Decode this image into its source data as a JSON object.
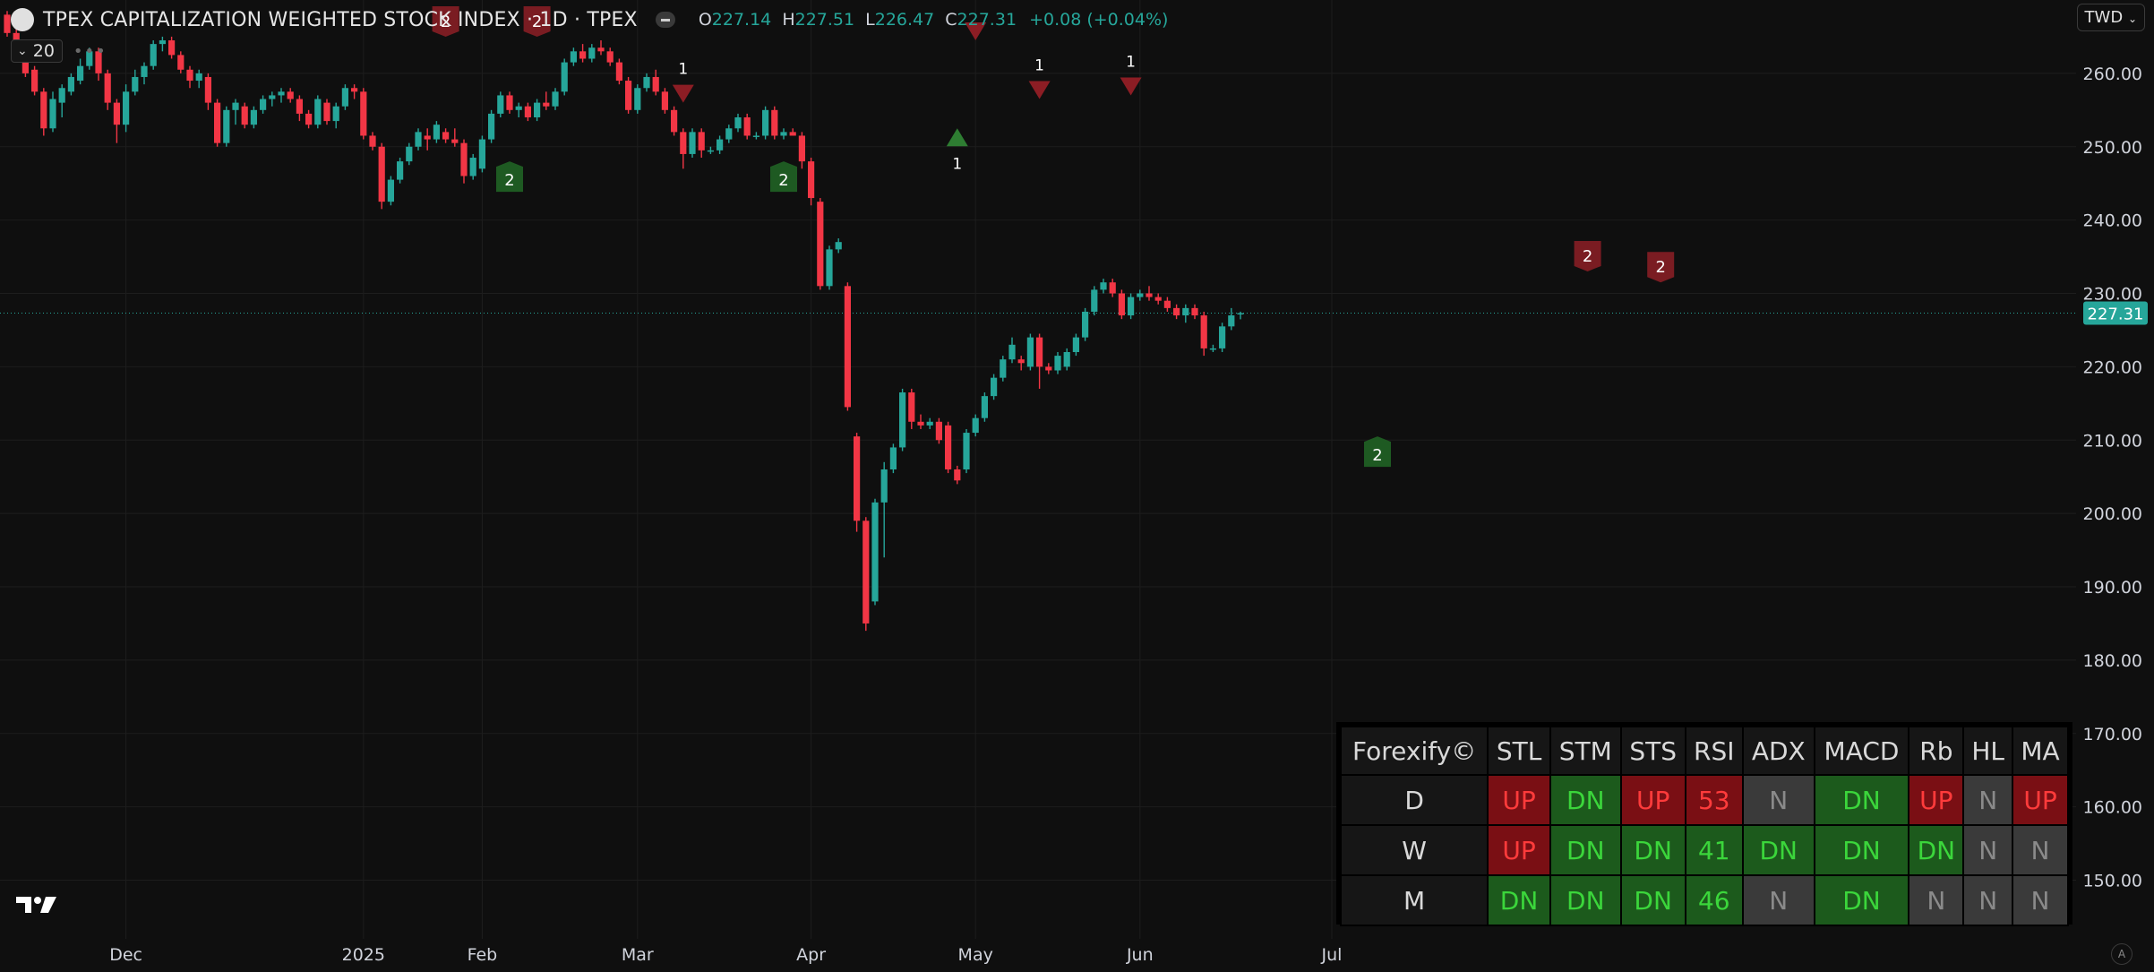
{
  "header": {
    "title": "TPEX CAPITALIZATION WEIGHTED STOCK INDEX · 1D · TPEX",
    "ohlc": {
      "o_label": "O",
      "open": "227.14",
      "h_label": "H",
      "high": "227.51",
      "l_label": "L",
      "low": "226.47",
      "c_label": "C",
      "close": "227.31",
      "change": "+0.08 (+0.04%)"
    }
  },
  "indicator": {
    "value": "20"
  },
  "currency": "TWD",
  "colors": {
    "up": "#26a69a",
    "down": "#f23645",
    "bg": "#0f0f0f",
    "marker_red": "#7a1c22",
    "marker_green": "#1e5a22"
  },
  "chart_data": {
    "type": "candlestick",
    "ylim": [
      142,
      270
    ],
    "y_ticks": [
      150,
      160,
      170,
      180,
      190,
      200,
      210,
      220,
      230,
      240,
      250,
      260
    ],
    "y_tick_labels": [
      "150.00",
      "160.00",
      "170.00",
      "180.00",
      "190.00",
      "200.00",
      "210.00",
      "220.00",
      "230.00",
      "240.00",
      "250.00",
      "260.00"
    ],
    "x_labels": [
      {
        "label": "Dec",
        "index": 13
      },
      {
        "label": "2025",
        "index": 39
      },
      {
        "label": "Feb",
        "index": 52
      },
      {
        "label": "Mar",
        "index": 69
      },
      {
        "label": "Apr",
        "index": 88
      },
      {
        "label": "May",
        "index": 106
      },
      {
        "label": "Jun",
        "index": 124
      },
      {
        "label": "Jul",
        "index": 145
      }
    ],
    "last_price": 227.31,
    "last_price_label": "227.31",
    "candles": [
      [
        268.0,
        268.5,
        265.0,
        265.5
      ],
      [
        265.5,
        266.0,
        262.0,
        262.5
      ],
      [
        262.0,
        262.5,
        259.5,
        260.0
      ],
      [
        260.5,
        261.0,
        257.0,
        257.5
      ],
      [
        257.5,
        258.0,
        251.5,
        252.5
      ],
      [
        252.5,
        257.5,
        252.0,
        256.5
      ],
      [
        256.0,
        258.5,
        254.0,
        258.0
      ],
      [
        257.5,
        260.0,
        257.0,
        259.5
      ],
      [
        259.0,
        262.0,
        258.5,
        261.0
      ],
      [
        261.0,
        263.5,
        260.5,
        263.0
      ],
      [
        263.0,
        263.5,
        259.0,
        260.0
      ],
      [
        260.0,
        260.5,
        255.0,
        256.0
      ],
      [
        256.0,
        256.5,
        250.5,
        253.0
      ],
      [
        253.0,
        258.5,
        252.0,
        257.5
      ],
      [
        257.5,
        260.5,
        257.0,
        259.5
      ],
      [
        259.5,
        261.5,
        258.5,
        261.0
      ],
      [
        261.0,
        264.5,
        260.5,
        264.0
      ],
      [
        264.0,
        265.0,
        263.0,
        264.5
      ],
      [
        264.5,
        265.0,
        262.0,
        262.5
      ],
      [
        262.5,
        263.0,
        260.0,
        260.5
      ],
      [
        260.5,
        261.0,
        258.0,
        259.0
      ],
      [
        259.0,
        260.5,
        258.0,
        260.0
      ],
      [
        259.5,
        260.0,
        255.0,
        256.0
      ],
      [
        256.0,
        256.5,
        250.0,
        250.5
      ],
      [
        250.5,
        255.5,
        250.0,
        255.0
      ],
      [
        255.0,
        256.5,
        253.0,
        256.0
      ],
      [
        255.5,
        256.0,
        252.5,
        253.0
      ],
      [
        253.0,
        255.5,
        252.5,
        255.0
      ],
      [
        255.0,
        257.0,
        254.5,
        256.5
      ],
      [
        256.5,
        257.5,
        255.5,
        257.0
      ],
      [
        257.0,
        258.0,
        256.0,
        257.5
      ],
      [
        257.5,
        258.0,
        256.0,
        256.5
      ],
      [
        256.5,
        257.0,
        253.5,
        254.5
      ],
      [
        254.5,
        255.0,
        252.5,
        253.0
      ],
      [
        253.0,
        257.0,
        252.5,
        256.5
      ],
      [
        256.0,
        256.5,
        253.0,
        253.5
      ],
      [
        253.5,
        256.0,
        252.5,
        255.5
      ],
      [
        255.5,
        258.5,
        255.0,
        258.0
      ],
      [
        258.0,
        258.5,
        256.5,
        257.5
      ],
      [
        257.5,
        258.0,
        251.0,
        251.5
      ],
      [
        251.5,
        252.0,
        249.5,
        250.0
      ],
      [
        250.0,
        250.5,
        241.5,
        242.5
      ],
      [
        242.5,
        246.0,
        242.0,
        245.5
      ],
      [
        245.5,
        248.5,
        245.0,
        248.0
      ],
      [
        248.0,
        250.5,
        247.5,
        250.0
      ],
      [
        250.0,
        252.5,
        249.5,
        252.0
      ],
      [
        251.5,
        252.5,
        249.5,
        251.0
      ],
      [
        251.0,
        253.5,
        250.5,
        253.0
      ],
      [
        252.0,
        252.5,
        250.5,
        251.0
      ],
      [
        251.0,
        252.5,
        250.0,
        250.5
      ],
      [
        250.5,
        251.0,
        245.0,
        246.0
      ],
      [
        246.0,
        249.0,
        245.5,
        248.5
      ],
      [
        247.0,
        251.5,
        246.5,
        251.0
      ],
      [
        251.0,
        255.0,
        250.5,
        254.5
      ],
      [
        254.5,
        257.5,
        254.0,
        257.0
      ],
      [
        257.0,
        257.5,
        254.5,
        255.0
      ],
      [
        255.0,
        256.0,
        254.0,
        255.5
      ],
      [
        255.5,
        256.0,
        253.5,
        254.0
      ],
      [
        254.0,
        256.5,
        253.5,
        256.0
      ],
      [
        256.0,
        257.5,
        255.0,
        255.5
      ],
      [
        255.5,
        258.0,
        255.0,
        257.5
      ],
      [
        257.5,
        262.0,
        257.0,
        261.5
      ],
      [
        261.5,
        263.5,
        261.0,
        263.0
      ],
      [
        263.0,
        264.0,
        261.5,
        262.0
      ],
      [
        262.0,
        264.0,
        261.5,
        263.5
      ],
      [
        263.5,
        264.5,
        262.5,
        263.0
      ],
      [
        263.0,
        263.5,
        261.0,
        261.5
      ],
      [
        261.5,
        262.0,
        258.5,
        259.0
      ],
      [
        259.0,
        259.5,
        254.5,
        255.0
      ],
      [
        255.0,
        258.5,
        254.5,
        258.0
      ],
      [
        258.0,
        260.0,
        257.5,
        259.5
      ],
      [
        259.5,
        260.5,
        257.0,
        257.5
      ],
      [
        257.5,
        258.0,
        254.5,
        255.0
      ],
      [
        255.0,
        255.5,
        251.5,
        252.0
      ],
      [
        252.0,
        252.5,
        247.0,
        249.0
      ],
      [
        249.0,
        252.5,
        248.5,
        252.0
      ],
      [
        252.0,
        252.5,
        248.5,
        249.5
      ],
      [
        249.5,
        250.0,
        249.0,
        249.5
      ],
      [
        249.5,
        251.5,
        249.0,
        251.0
      ],
      [
        251.0,
        253.0,
        250.5,
        252.5
      ],
      [
        252.5,
        254.5,
        252.0,
        254.0
      ],
      [
        254.0,
        254.5,
        251.0,
        251.5
      ],
      [
        251.5,
        252.0,
        251.0,
        251.5
      ],
      [
        251.5,
        255.5,
        251.0,
        255.0
      ],
      [
        255.0,
        255.5,
        251.0,
        251.5
      ],
      [
        251.5,
        252.5,
        251.0,
        252.0
      ],
      [
        252.0,
        252.5,
        251.5,
        251.5
      ],
      [
        251.5,
        252.0,
        247.0,
        248.0
      ],
      [
        248.0,
        248.5,
        242.0,
        243.0
      ],
      [
        242.5,
        243.0,
        230.5,
        231.0
      ],
      [
        231.0,
        236.5,
        230.5,
        236.0
      ],
      [
        236.0,
        237.5,
        235.5,
        237.0
      ],
      [
        231.0,
        231.5,
        214.0,
        214.5
      ],
      [
        210.5,
        211.0,
        197.5,
        199.0
      ],
      [
        199.0,
        199.5,
        184.0,
        185.0
      ],
      [
        188.0,
        202.0,
        187.5,
        201.5
      ],
      [
        201.5,
        207.0,
        194.0,
        206.0
      ],
      [
        206.0,
        209.5,
        205.5,
        209.0
      ],
      [
        209.0,
        217.0,
        208.5,
        216.5
      ],
      [
        216.5,
        217.0,
        211.5,
        212.5
      ],
      [
        212.5,
        213.5,
        211.5,
        212.0
      ],
      [
        212.0,
        213.0,
        211.5,
        212.5
      ],
      [
        212.5,
        213.0,
        209.5,
        210.0
      ],
      [
        212.0,
        212.5,
        205.5,
        206.0
      ],
      [
        206.0,
        206.5,
        204.0,
        204.5
      ],
      [
        206.0,
        211.5,
        205.5,
        211.0
      ],
      [
        211.0,
        213.5,
        210.5,
        213.0
      ],
      [
        213.0,
        216.5,
        212.5,
        216.0
      ],
      [
        216.0,
        219.0,
        215.5,
        218.5
      ],
      [
        218.5,
        221.5,
        218.0,
        221.0
      ],
      [
        221.0,
        224.0,
        220.5,
        223.0
      ],
      [
        221.0,
        221.5,
        219.5,
        220.5
      ],
      [
        220.0,
        224.5,
        219.5,
        224.0
      ],
      [
        224.0,
        224.5,
        217.0,
        220.0
      ],
      [
        220.0,
        220.5,
        219.0,
        219.5
      ],
      [
        219.5,
        222.0,
        219.0,
        221.5
      ],
      [
        220.0,
        222.5,
        219.5,
        222.0
      ],
      [
        222.0,
        224.5,
        221.5,
        224.0
      ],
      [
        224.0,
        228.0,
        223.5,
        227.5
      ],
      [
        227.5,
        231.0,
        227.0,
        230.5
      ],
      [
        230.5,
        232.0,
        230.0,
        231.5
      ],
      [
        231.5,
        232.0,
        229.5,
        230.0
      ],
      [
        230.0,
        230.5,
        226.5,
        227.0
      ],
      [
        227.0,
        230.0,
        226.5,
        229.5
      ],
      [
        229.5,
        230.5,
        229.0,
        230.0
      ],
      [
        230.0,
        231.0,
        229.0,
        229.5
      ],
      [
        229.5,
        230.0,
        228.5,
        229.0
      ],
      [
        229.0,
        229.5,
        227.5,
        228.0
      ],
      [
        228.0,
        228.5,
        226.5,
        227.0
      ],
      [
        227.0,
        228.5,
        226.0,
        228.0
      ],
      [
        228.0,
        228.5,
        226.5,
        227.0
      ],
      [
        227.0,
        227.5,
        221.5,
        222.5
      ],
      [
        222.5,
        223.0,
        222.0,
        222.5
      ],
      [
        222.5,
        226.0,
        222.0,
        225.5
      ],
      [
        225.5,
        228.0,
        225.0,
        227.0
      ],
      [
        227.14,
        227.51,
        226.47,
        227.31
      ]
    ],
    "markers": [
      {
        "type": "flag",
        "color": "red",
        "label": "2",
        "index": 48,
        "price": 265.0,
        "pos": "above"
      },
      {
        "type": "flag",
        "color": "red",
        "label": "2",
        "index": 58,
        "price": 265.0,
        "pos": "above"
      },
      {
        "type": "flag",
        "color": "green",
        "label": "2",
        "index": 55,
        "price": 248.0,
        "pos": "below"
      },
      {
        "type": "flag",
        "color": "green",
        "label": "2",
        "index": 85,
        "price": 248.0,
        "pos": "below"
      },
      {
        "type": "tri",
        "color": "red",
        "label": "1",
        "index": 74,
        "price": 256.0,
        "pos": "above"
      },
      {
        "type": "tri",
        "color": "green",
        "label": "1",
        "index": 104,
        "price": 252.5,
        "pos": "below"
      },
      {
        "type": "tri",
        "color": "red",
        "label": "1",
        "index": 113,
        "price": 256.5,
        "pos": "above"
      },
      {
        "type": "tri",
        "color": "red",
        "label": "1",
        "index": 123,
        "price": 257.0,
        "pos": "above"
      },
      {
        "type": "tri",
        "color": "red",
        "label": "",
        "index": 106,
        "price": 264.5,
        "pos": "above"
      },
      {
        "type": "flag",
        "color": "green",
        "label": "2",
        "index": 150,
        "price": 210.5,
        "pos": "below"
      },
      {
        "type": "flag",
        "color": "red",
        "label": "2",
        "index": 173,
        "price": 233.0,
        "pos": "above"
      },
      {
        "type": "flag",
        "color": "red",
        "label": "2",
        "index": 181,
        "price": 231.5,
        "pos": "above"
      }
    ]
  },
  "dashboard": {
    "brand": "Forexify©",
    "columns": [
      "STL",
      "STM",
      "STS",
      "RSI",
      "ADX",
      "MACD",
      "Rb",
      "HL",
      "MA"
    ],
    "rows": [
      {
        "label": "D",
        "cells": [
          {
            "v": "UP",
            "s": "up"
          },
          {
            "v": "DN",
            "s": "dn"
          },
          {
            "v": "UP",
            "s": "up"
          },
          {
            "v": "53",
            "s": "up"
          },
          {
            "v": "N",
            "s": "n"
          },
          {
            "v": "DN",
            "s": "dn"
          },
          {
            "v": "UP",
            "s": "up"
          },
          {
            "v": "N",
            "s": "n"
          },
          {
            "v": "UP",
            "s": "up"
          }
        ]
      },
      {
        "label": "W",
        "cells": [
          {
            "v": "UP",
            "s": "up"
          },
          {
            "v": "DN",
            "s": "dn"
          },
          {
            "v": "DN",
            "s": "dn"
          },
          {
            "v": "41",
            "s": "dn"
          },
          {
            "v": "DN",
            "s": "dn"
          },
          {
            "v": "DN",
            "s": "dn"
          },
          {
            "v": "DN",
            "s": "dn"
          },
          {
            "v": "N",
            "s": "n"
          },
          {
            "v": "N",
            "s": "n"
          }
        ]
      },
      {
        "label": "M",
        "cells": [
          {
            "v": "DN",
            "s": "dn"
          },
          {
            "v": "DN",
            "s": "dn"
          },
          {
            "v": "DN",
            "s": "dn"
          },
          {
            "v": "46",
            "s": "dn"
          },
          {
            "v": "N",
            "s": "n"
          },
          {
            "v": "DN",
            "s": "dn"
          },
          {
            "v": "N",
            "s": "n"
          },
          {
            "v": "N",
            "s": "n"
          },
          {
            "v": "N",
            "s": "n"
          }
        ]
      }
    ]
  }
}
